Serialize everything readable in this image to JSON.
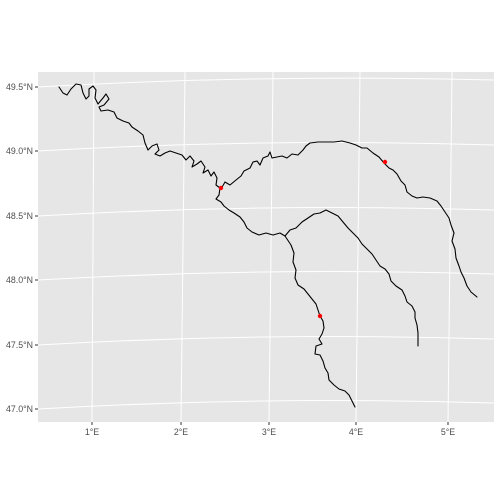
{
  "map": {
    "lat_labels": [
      "49.5°N",
      "49.0°N",
      "48.5°N",
      "48.0°N",
      "47.5°N",
      "47.0°N"
    ],
    "lon_labels": [
      "1°E",
      "2°E",
      "3°E",
      "4°E",
      "5°E"
    ],
    "river_color": "#000000",
    "point_color": "#ff0000",
    "panel_color": "#e6e6e6",
    "points": [
      {
        "lon": 2.47,
        "lat": 48.72
      },
      {
        "lon": 4.32,
        "lat": 48.92
      },
      {
        "lon": 3.6,
        "lat": 47.72
      }
    ]
  }
}
